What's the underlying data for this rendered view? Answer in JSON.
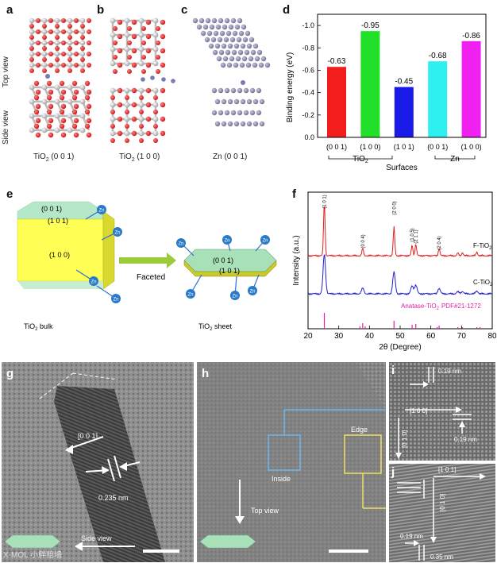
{
  "panels": {
    "a": {
      "label": "a",
      "caption_main": "TiO",
      "caption_sub": "2",
      "caption_rest": " (0 0 1)"
    },
    "b": {
      "label": "b",
      "caption_main": "TiO",
      "caption_sub": "2",
      "caption_rest": " (1 0 0)"
    },
    "c": {
      "label": "c",
      "caption": "Zn (0 0 1)"
    },
    "d": {
      "label": "d"
    },
    "e": {
      "label": "e"
    },
    "f": {
      "label": "f"
    },
    "g": {
      "label": "g"
    },
    "h": {
      "label": "h"
    },
    "i": {
      "label": "i"
    },
    "j": {
      "label": "j"
    }
  },
  "row_labels": {
    "top_view": "Top view",
    "side_view": "Side view"
  },
  "chart_d": {
    "ylabel": "Binding energy (eV)",
    "xlabel": "Surfaces",
    "yticks": [
      "-1.0",
      "-0.8",
      "-0.6",
      "-0.4",
      "-0.2",
      "0.0"
    ],
    "group1": "TiO",
    "group1_sub": "2",
    "group2": "Zn"
  },
  "chart_data": [
    {
      "type": "bar",
      "categories": [
        "(0 0 1)",
        "(1 0 0)",
        "(1 0 1)",
        "(0 0 1)",
        "(1 0 0)"
      ],
      "values": [
        -0.63,
        -0.95,
        -0.45,
        -0.68,
        -0.86
      ],
      "value_labels": [
        "-0.63",
        "-0.95",
        "-0.45",
        "-0.68",
        "-0.86"
      ],
      "colors": [
        "#f21e1e",
        "#22e02a",
        "#1a1ae8",
        "#2ef0f0",
        "#f020f0"
      ],
      "ylabel": "Binding energy (eV)",
      "xlabel": "Surfaces",
      "ylim": [
        0,
        -1.1
      ],
      "groups": [
        "TiO2",
        "Zn"
      ]
    },
    {
      "type": "line",
      "xlabel": "2θ (Degree)",
      "ylabel": "Intensity (a.u.)",
      "xlim": [
        20,
        80
      ],
      "xticks": [
        20,
        30,
        40,
        50,
        60,
        70,
        80
      ],
      "series": [
        {
          "name": "F-TiO2",
          "color": "#e02020"
        },
        {
          "name": "C-TiO2",
          "color": "#2020d0"
        }
      ],
      "peaks": [
        {
          "x": 25.3,
          "label": "(1 0 1)"
        },
        {
          "x": 37.8,
          "label": "(0 0 4)"
        },
        {
          "x": 48.0,
          "label": "(2 0 0)"
        },
        {
          "x": 53.9,
          "label": "(1 0 5)"
        },
        {
          "x": 55.1,
          "label": "(2 1 1)"
        },
        {
          "x": 62.7,
          "label": "(2 0 4)"
        }
      ],
      "reference": {
        "name": "Anatase-TiO2 PDF#21-1272",
        "color": "#e020a0",
        "lines": [
          25.3,
          36.9,
          37.8,
          38.6,
          48.0,
          53.9,
          55.1,
          62.1,
          62.7,
          68.8,
          70.3,
          75.0,
          76.0
        ]
      }
    }
  ],
  "chart_f": {
    "ylabel": "Intensity (a.u.)",
    "xlabel": "2θ (Degree)",
    "series_f": "F-TiO",
    "series_c": "C-TiO",
    "sub": "2",
    "ref_text": "Anatase-TiO",
    "ref_pdf": "PDF#21-1272",
    "peak_labels": [
      "(1 0 1)",
      "(0 0 4)",
      "(2 0 0)",
      "(1 0 5)",
      "(2 1 1)",
      "(2 0 4)"
    ]
  },
  "panel_e": {
    "zn": "Zn",
    "face_001": "(0 0 1)",
    "face_101": "(1 0 1)",
    "face_100": "(1 0 0)",
    "faceted": "Faceted",
    "bulk_main": "TiO",
    "bulk_sub": "2",
    "bulk_rest": " bulk",
    "sheet_main": "TiO",
    "sheet_sub": "2",
    "sheet_rest": " sheet"
  },
  "panel_g": {
    "dir": "[0 0 1]",
    "spacing": "0.235 nm",
    "view": "Side view"
  },
  "panel_h": {
    "inside": "Inside",
    "edge": "Edge",
    "view": "Top view"
  },
  "panel_i": {
    "s1": "0.19 nm",
    "s2": "0.19 nm",
    "d1": "[1 0 0]",
    "d2": "[0 1 0]"
  },
  "panel_j": {
    "d1": "[1 0 1]",
    "d2": "[0 1 0]",
    "s1": "0.19 nm",
    "s2": "0.35 nm"
  },
  "watermark": "X-MOL 小胖赔墙"
}
